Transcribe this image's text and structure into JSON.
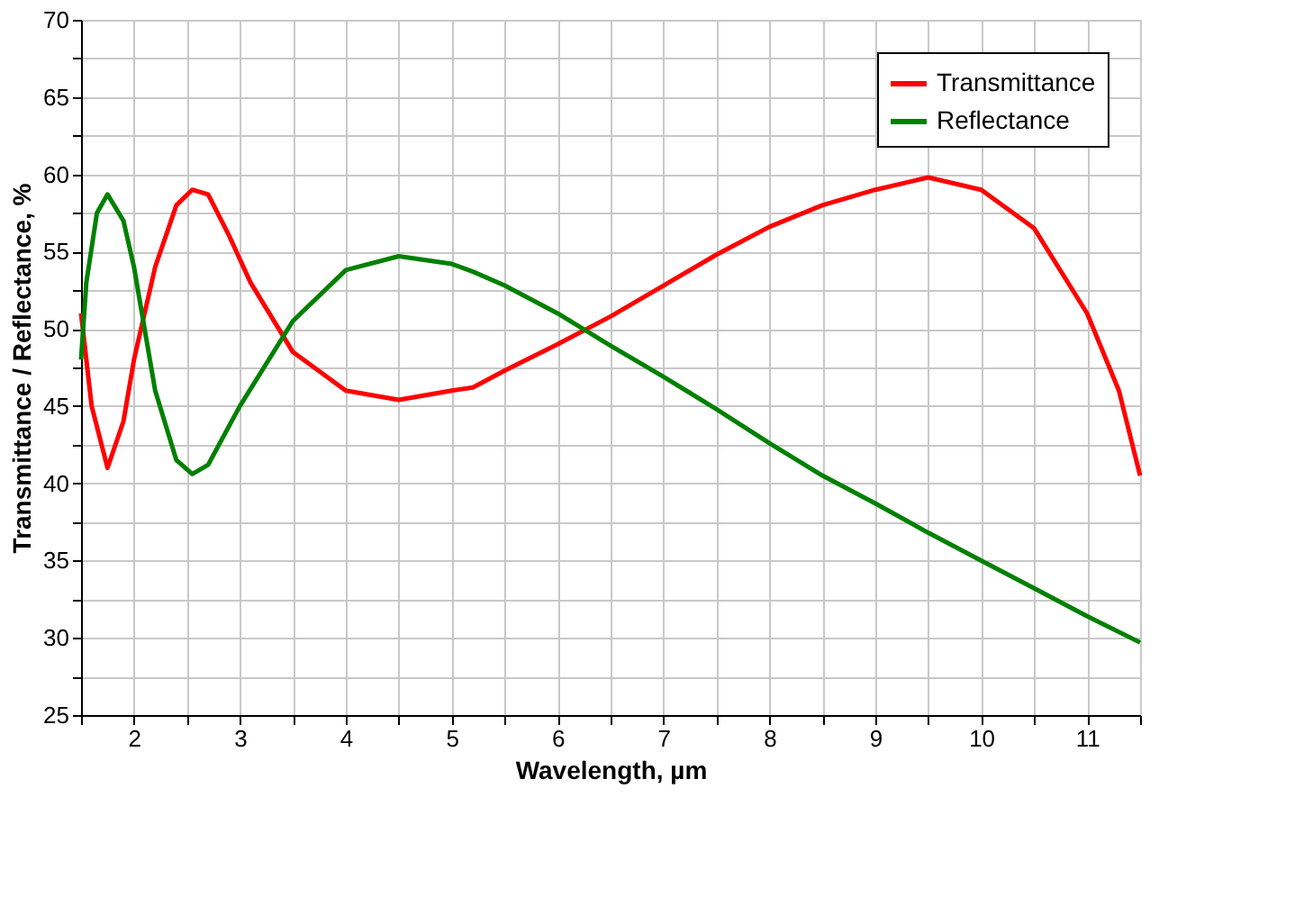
{
  "chart_data": {
    "type": "line",
    "xlabel": "Wavelength, µm",
    "ylabel": "Transmittance / Reflectance, %",
    "xlim": [
      1.5,
      11.5
    ],
    "ylim": [
      25,
      70
    ],
    "xticks": [
      {
        "value": 1.5,
        "label": null
      },
      2,
      {
        "value": 2.5,
        "label": null
      },
      3,
      {
        "value": 3.5,
        "label": null
      },
      4,
      {
        "value": 4.5,
        "label": null
      },
      5,
      {
        "value": 5.5,
        "label": null
      },
      6,
      {
        "value": 6.5,
        "label": null
      },
      7,
      {
        "value": 7.5,
        "label": null
      },
      8,
      {
        "value": 8.5,
        "label": null
      },
      9,
      {
        "value": 9.5,
        "label": null
      },
      10,
      {
        "value": 10.5,
        "label": null
      },
      11,
      {
        "value": 11.5,
        "label": null
      }
    ],
    "yticks": [
      25,
      {
        "value": 27.5,
        "label": null
      },
      30,
      {
        "value": 32.5,
        "label": null
      },
      35,
      {
        "value": 37.5,
        "label": null
      },
      40,
      {
        "value": 42.5,
        "label": null
      },
      45,
      {
        "value": 47.5,
        "label": null
      },
      50,
      {
        "value": 52.5,
        "label": null
      },
      55,
      {
        "value": 57.5,
        "label": null
      },
      60,
      {
        "value": 62.5,
        "label": null
      },
      65,
      {
        "value": 67.5,
        "label": null
      },
      70
    ],
    "grid": true,
    "legend": "top right",
    "line_style": "solid",
    "marker": "none",
    "series": [
      {
        "name": "Transmittance",
        "color": "#ff0000",
        "x": [
          1.5,
          1.6,
          1.75,
          1.9,
          2.0,
          2.2,
          2.4,
          2.55,
          2.7,
          2.9,
          3.1,
          3.5,
          4.0,
          4.5,
          5.0,
          5.2,
          5.5,
          6.0,
          6.5,
          7.0,
          7.5,
          8.0,
          8.5,
          9.0,
          9.5,
          10.0,
          10.5,
          11.0,
          11.3,
          11.5
        ],
        "values": [
          51,
          45,
          41,
          44,
          48,
          54,
          58,
          59,
          58.7,
          56,
          53,
          48.5,
          46,
          45.4,
          46,
          46.2,
          47.3,
          49,
          50.8,
          52.8,
          54.8,
          56.6,
          58,
          59,
          59.8,
          59,
          56.5,
          51,
          46,
          40.5
        ]
      },
      {
        "name": "Reflectance",
        "color": "#008000",
        "x": [
          1.5,
          1.55,
          1.65,
          1.75,
          1.9,
          2.0,
          2.2,
          2.4,
          2.55,
          2.7,
          3.0,
          3.5,
          4.0,
          4.5,
          5.0,
          5.2,
          5.5,
          6.0,
          6.5,
          7.0,
          7.5,
          8.0,
          8.5,
          9.0,
          9.5,
          10.0,
          10.5,
          11.0,
          11.5
        ],
        "values": [
          48,
          53,
          57.5,
          58.7,
          57,
          54,
          46,
          41.5,
          40.6,
          41.2,
          45,
          50.5,
          53.8,
          54.7,
          54.2,
          53.7,
          52.8,
          51,
          48.9,
          46.9,
          44.8,
          42.6,
          40.5,
          38.7,
          36.8,
          35,
          33.2,
          31.4,
          29.7
        ]
      }
    ]
  }
}
